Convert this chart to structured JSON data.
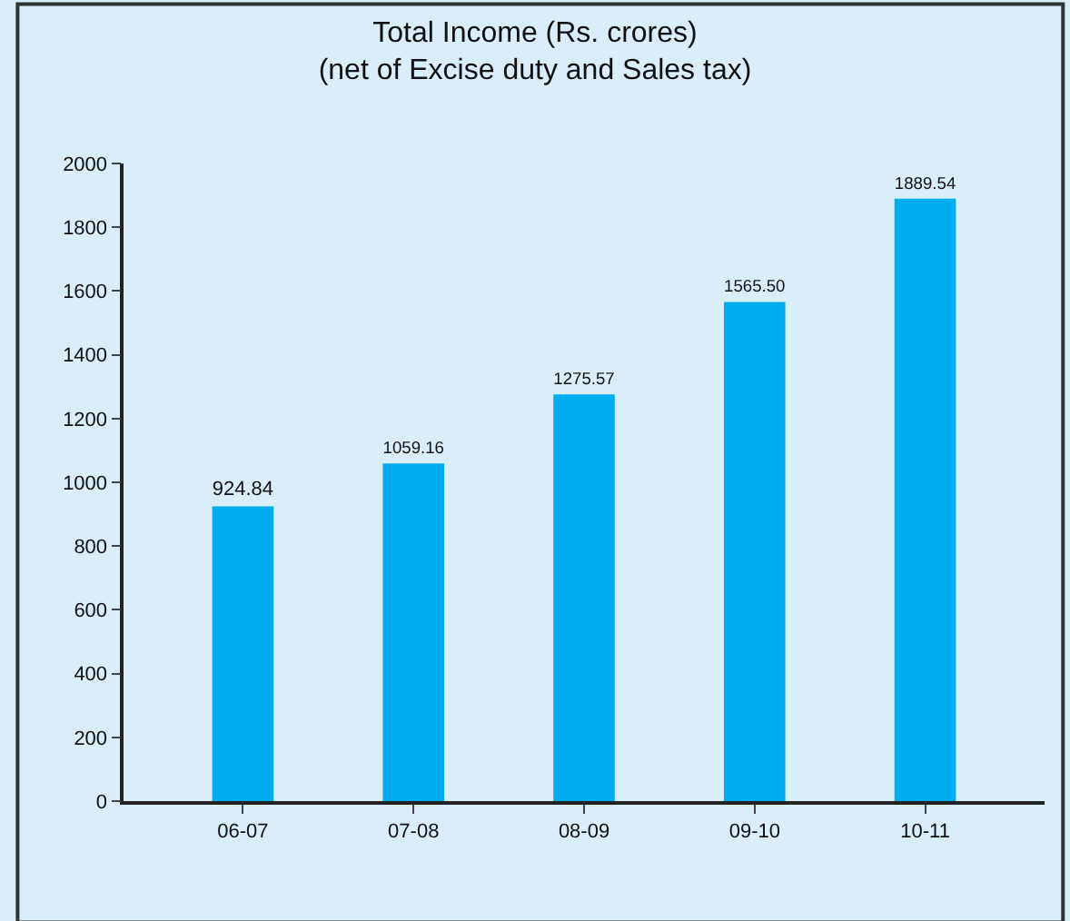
{
  "chart_data": {
    "type": "bar",
    "title": "Total Income (Rs. crores)\n(net of Excise duty and Sales tax)",
    "categories": [
      "06-07",
      "07-08",
      "08-09",
      "09-10",
      "10-11"
    ],
    "values": [
      924.84,
      1059.16,
      1275.57,
      1565.5,
      1889.54
    ],
    "value_labels": [
      "924.84",
      "1059.16",
      "1275.57",
      "1565.50",
      "1889.54"
    ],
    "color": "#00adef",
    "ylim": [
      0,
      2000
    ],
    "yticks": [
      0,
      200,
      400,
      600,
      800,
      1000,
      1200,
      1400,
      1600,
      1800,
      2000
    ],
    "grid": false,
    "legend": false
  }
}
